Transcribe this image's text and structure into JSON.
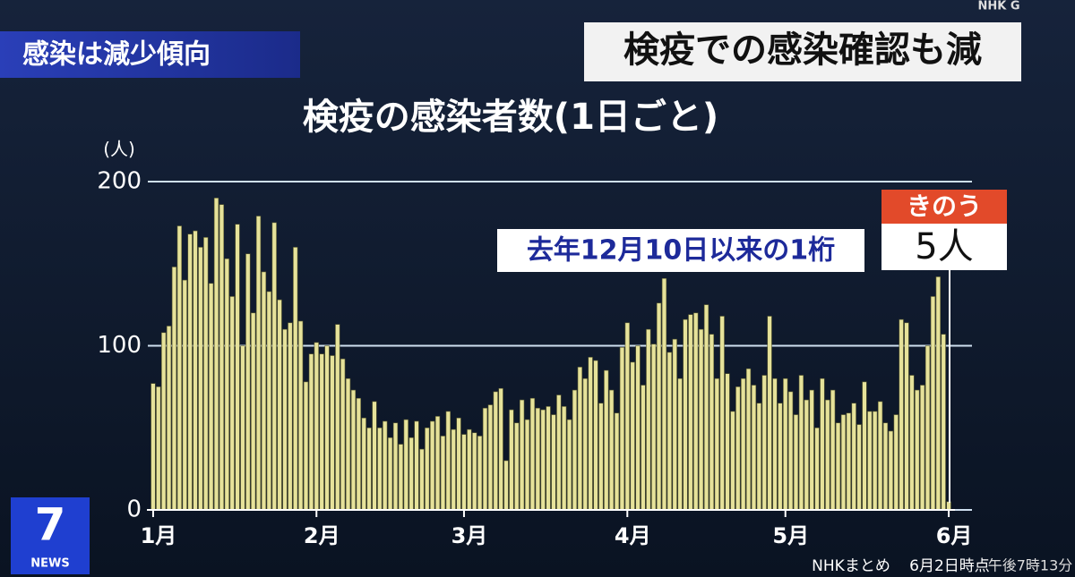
{
  "chart_data": {
    "type": "bar",
    "banner": "感染は減少傾向",
    "headline": "検疫での感染確認も減",
    "title": "検疫の感染者数(1日ごと)",
    "y_unit": "(人)",
    "annotation": "去年12月10日以来の1桁",
    "callout_label": "きのう",
    "callout_value": "5人",
    "source": "NHKまとめ",
    "as_of": "6月2日時点",
    "clock": "午後7時13分",
    "channel": "NHK G",
    "program": "NEWS",
    "program_number": "7",
    "color": "#e6e29a",
    "ylim": [
      0,
      200
    ],
    "yticks": [
      0,
      100,
      200
    ],
    "grid": true,
    "categories": [
      "1月",
      null,
      null,
      null,
      null,
      null,
      null,
      null,
      null,
      null,
      null,
      null,
      null,
      null,
      null,
      null,
      null,
      null,
      null,
      null,
      null,
      null,
      null,
      null,
      null,
      null,
      null,
      null,
      null,
      null,
      null,
      "2月",
      null,
      null,
      null,
      null,
      null,
      null,
      null,
      null,
      null,
      null,
      null,
      null,
      null,
      null,
      null,
      null,
      null,
      null,
      null,
      null,
      null,
      null,
      null,
      null,
      null,
      null,
      null,
      "3月",
      null,
      null,
      null,
      null,
      null,
      null,
      null,
      null,
      null,
      null,
      null,
      null,
      null,
      null,
      null,
      null,
      null,
      null,
      null,
      null,
      null,
      null,
      null,
      null,
      null,
      null,
      null,
      null,
      null,
      null,
      "4月",
      null,
      null,
      null,
      null,
      null,
      null,
      null,
      null,
      null,
      null,
      null,
      null,
      null,
      null,
      null,
      null,
      null,
      null,
      null,
      null,
      null,
      null,
      null,
      null,
      null,
      null,
      null,
      null,
      null,
      "5月",
      null,
      null,
      null,
      null,
      null,
      null,
      null,
      null,
      null,
      null,
      null,
      null,
      null,
      null,
      null,
      null,
      null,
      null,
      null,
      null,
      null,
      null,
      null,
      null,
      null,
      null,
      null,
      null,
      null,
      null,
      "6月"
    ],
    "values": [
      77,
      75,
      108,
      112,
      148,
      173,
      140,
      168,
      170,
      160,
      166,
      138,
      190,
      186,
      153,
      130,
      174,
      100,
      156,
      120,
      179,
      145,
      133,
      175,
      128,
      110,
      114,
      160,
      115,
      78,
      95,
      102,
      95,
      100,
      94,
      113,
      92,
      80,
      73,
      68,
      56,
      50,
      66,
      50,
      54,
      44,
      53,
      40,
      55,
      44,
      54,
      37,
      50,
      54,
      57,
      45,
      60,
      49,
      56,
      46,
      49,
      47,
      45,
      62,
      64,
      72,
      74,
      30,
      61,
      53,
      67,
      55,
      68,
      62,
      61,
      63,
      58,
      70,
      63,
      55,
      73,
      87,
      80,
      93,
      91,
      65,
      85,
      73,
      59,
      99,
      114,
      90,
      100,
      76,
      110,
      101,
      126,
      141,
      96,
      104,
      80,
      116,
      119,
      120,
      110,
      125,
      107,
      80,
      118,
      83,
      60,
      75,
      80,
      86,
      76,
      65,
      82,
      118,
      80,
      65,
      80,
      72,
      58,
      82,
      67,
      73,
      50,
      80,
      67,
      73,
      53,
      58,
      59,
      65,
      52,
      78,
      60,
      60,
      66,
      53,
      48,
      58,
      116,
      114,
      82,
      73,
      76,
      100,
      130,
      142,
      107,
      5
    ]
  }
}
